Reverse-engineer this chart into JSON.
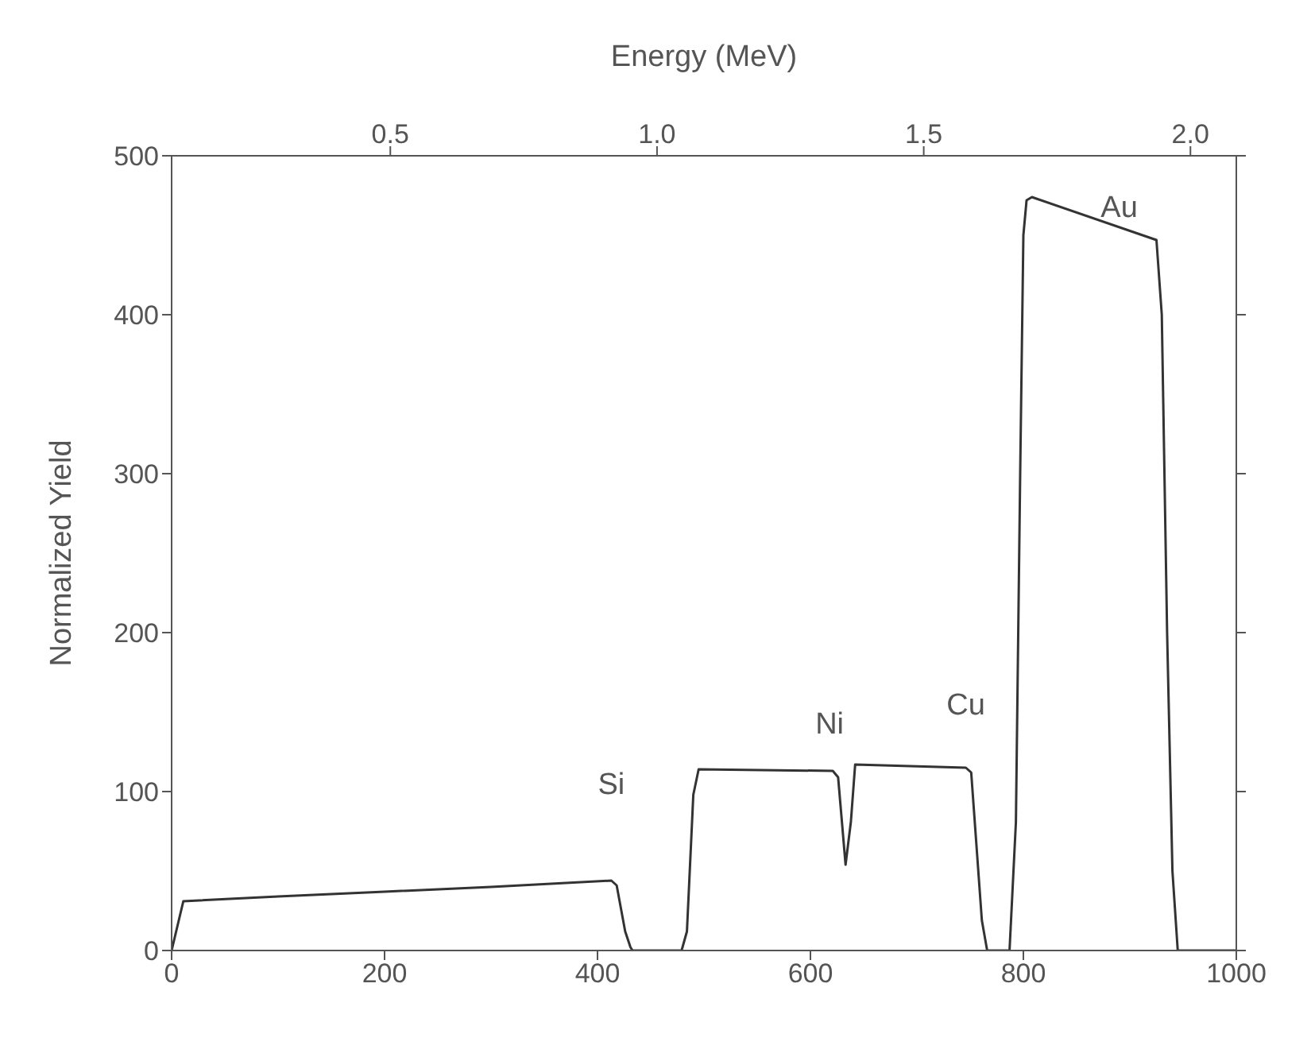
{
  "chart_data": {
    "type": "line",
    "xlabel": null,
    "x2label": "Energy (MeV)",
    "ylabel": "Normalized Yield",
    "x": [
      0,
      11,
      100,
      200,
      300,
      413,
      418,
      426,
      431,
      433,
      479,
      484,
      490,
      495,
      621,
      626,
      633,
      638,
      642,
      746,
      751,
      761,
      766,
      787,
      793,
      797,
      800,
      803,
      808,
      925,
      930,
      935,
      940,
      945,
      1000
    ],
    "series": [
      {
        "color": "#333333",
        "values": [
          0,
          31,
          34,
          37,
          40,
          44,
          41,
          12,
          2,
          0,
          0,
          12,
          98,
          114,
          113,
          109,
          54,
          81,
          117,
          115,
          112,
          19,
          0,
          0,
          81,
          300,
          450,
          472,
          474,
          447,
          400,
          200,
          50,
          0,
          0
        ]
      }
    ],
    "xlim": [
      0,
      1000
    ],
    "xticks": [
      0,
      200,
      400,
      600,
      800,
      1000
    ],
    "x2lim": [
      0.09,
      2.086
    ],
    "x2ticks": [
      0.5,
      {
        "value": 1,
        "label": "1.0"
      },
      1.5,
      {
        "value": 2,
        "label": "2.0"
      }
    ],
    "ylim": [
      0,
      500
    ],
    "yticks": [
      0,
      100,
      200,
      300,
      400,
      500
    ],
    "grid": false,
    "legend": false,
    "marker": "none",
    "line_style": "solid",
    "annotations": [
      "Si",
      "Ni",
      "Cu",
      "Au"
    ]
  }
}
